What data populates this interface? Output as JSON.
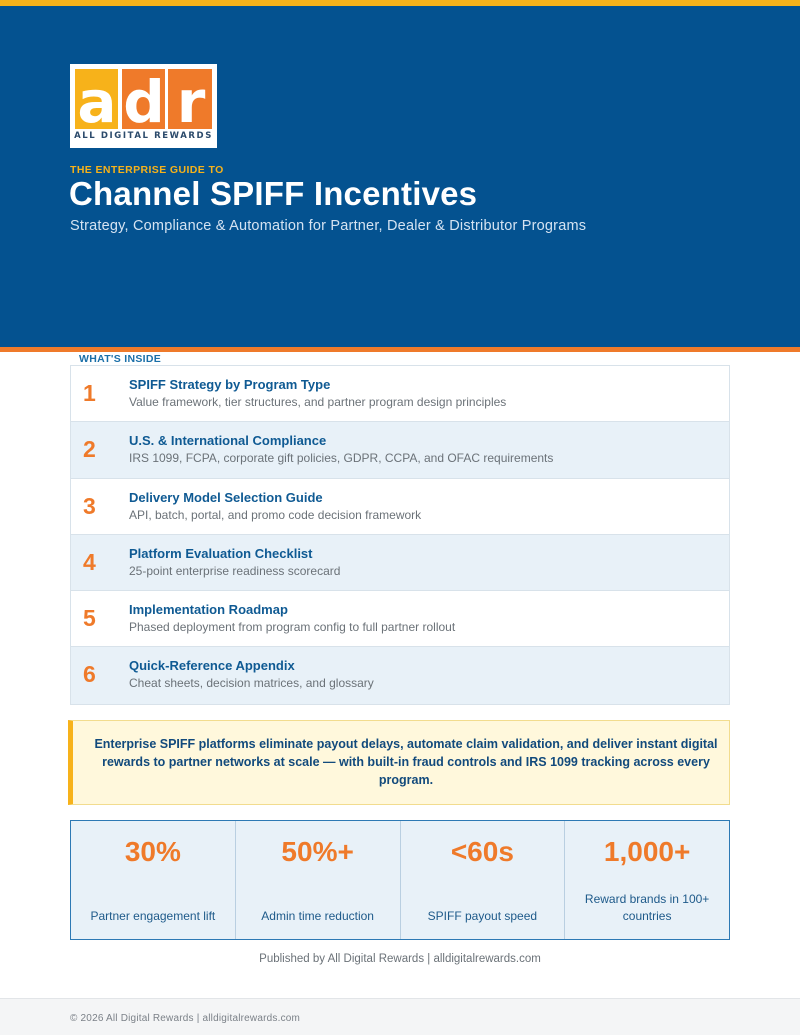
{
  "logo": {
    "letters": [
      "a",
      "d",
      "r"
    ],
    "tagline": "ALL DIGITAL REWARDS"
  },
  "hero": {
    "eyebrow": "THE ENTERPRISE GUIDE TO",
    "title": "Channel SPIFF Incentives",
    "subtitle": "Strategy, Compliance & Automation for Partner, Dealer & Distributor Programs"
  },
  "inside": {
    "label": "WHAT'S INSIDE",
    "items": [
      {
        "num": "1",
        "title": "SPIFF Strategy by Program Type",
        "desc": "Value framework, tier structures, and partner program design principles"
      },
      {
        "num": "2",
        "title": "U.S. & International Compliance",
        "desc": "IRS 1099, FCPA, corporate gift policies, GDPR, CCPA, and OFAC requirements"
      },
      {
        "num": "3",
        "title": "Delivery Model Selection Guide",
        "desc": "API, batch, portal, and promo code decision framework"
      },
      {
        "num": "4",
        "title": "Platform Evaluation Checklist",
        "desc": "25-point enterprise readiness scorecard"
      },
      {
        "num": "5",
        "title": "Implementation Roadmap",
        "desc": "Phased deployment from program config to full partner rollout"
      },
      {
        "num": "6",
        "title": "Quick-Reference Appendix",
        "desc": "Cheat sheets, decision matrices, and glossary"
      }
    ]
  },
  "callout": "Enterprise SPIFF platforms eliminate payout delays, automate claim validation, and deliver instant digital rewards to partner networks at scale — with built-in fraud controls and IRS 1099 tracking across every program.",
  "stats": [
    {
      "value": "30%",
      "label": "Partner engagement lift"
    },
    {
      "value": "50%+",
      "label": "Admin time reduction"
    },
    {
      "value": "<60s",
      "label": "SPIFF payout speed"
    },
    {
      "value": "1,000+",
      "label": "Reward brands in 100+ countries"
    }
  ],
  "published": "Published by All Digital Rewards | alldigitalrewards.com",
  "footer": "© 2026 All Digital Rewards  |  alldigitalrewards.com",
  "colors": {
    "navy": "#045290",
    "orange": "#ef7a2a",
    "gold": "#f7b21a"
  }
}
